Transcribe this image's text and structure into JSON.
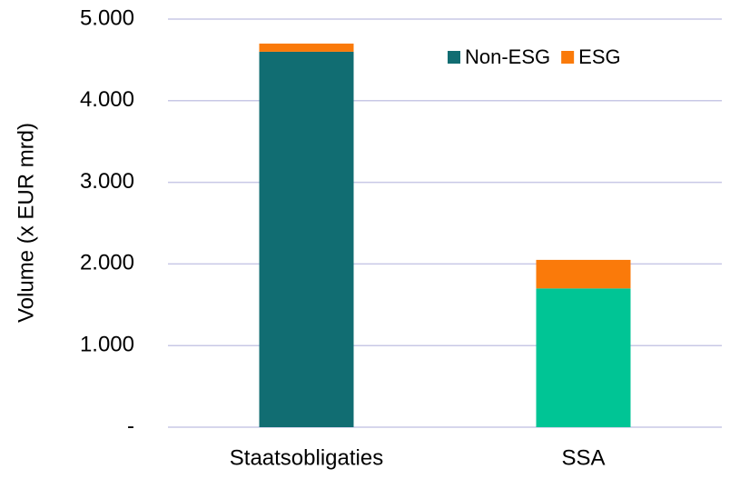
{
  "chart_data": {
    "type": "stacked_bar",
    "ylabel": "Volume (x EUR mrd)",
    "categories": [
      "Staatsobligaties",
      "SSA"
    ],
    "series": [
      {
        "name": "Non-ESG",
        "color": "#116d72",
        "colors": [
          "#116d72",
          "#00c595"
        ],
        "values": [
          4600,
          1700
        ]
      },
      {
        "name": "ESG",
        "color": "#fa7a0a",
        "values": [
          100,
          350
        ]
      }
    ],
    "ylim": [
      0,
      5000
    ],
    "yticks": [
      {
        "value": 0,
        "label": "-"
      },
      {
        "value": 1000,
        "label": "1.000"
      },
      {
        "value": 2000,
        "label": "2.000"
      },
      {
        "value": 3000,
        "label": "3.000"
      },
      {
        "value": 4000,
        "label": "4.000"
      },
      {
        "value": 5000,
        "label": "5.000"
      }
    ],
    "grid": true,
    "legend": "upper right"
  }
}
